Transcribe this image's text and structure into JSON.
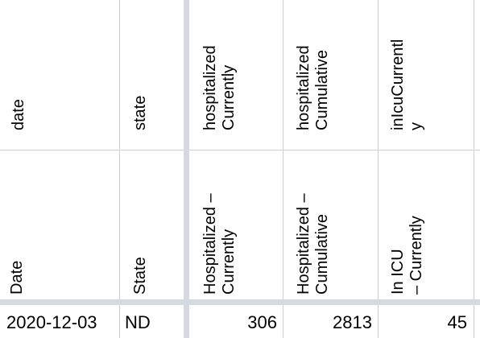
{
  "header_row_1": {
    "date": "date",
    "state": "state",
    "hospitalized_currently": [
      "hospitalized",
      "Currently"
    ],
    "hospitalized_cumulative": [
      "hospitalized",
      "Cumulative"
    ],
    "in_icu_currently": [
      "inIcuCurrentl",
      "y"
    ]
  },
  "header_row_2": {
    "date": "Date",
    "state": "State",
    "hospitalized_currently": [
      "Hospitalized –",
      "Currently"
    ],
    "hospitalized_cumulative": [
      "Hospitalized –",
      "Cumulative"
    ],
    "in_icu_currently": [
      "In ICU",
      "– Currently"
    ]
  },
  "data_row": {
    "date": "2020-12-03",
    "state": "ND",
    "hospitalized_currently": "306",
    "hospitalized_cumulative": "2813",
    "in_icu_currently": "45"
  }
}
